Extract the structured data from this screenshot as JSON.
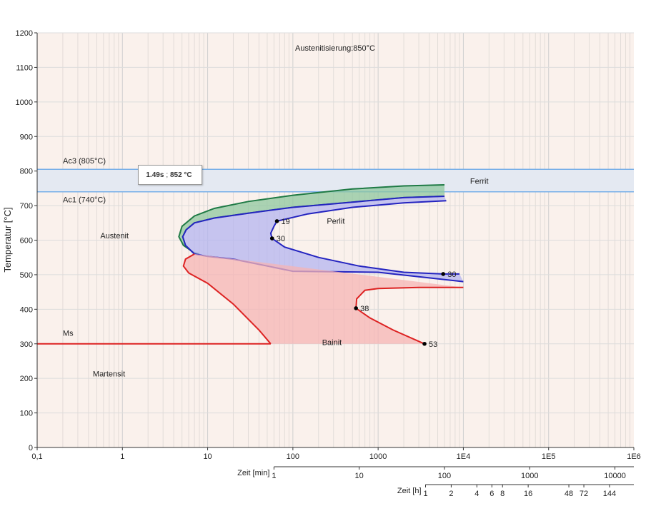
{
  "chart_data": {
    "type": "line",
    "title": "Austenitisierung:850°C",
    "ylabel": "Temperatur [°C]",
    "y_axis": {
      "min": 0,
      "max": 1200,
      "ticks": [
        0,
        100,
        200,
        300,
        400,
        500,
        600,
        700,
        800,
        900,
        1000,
        1100,
        1200
      ]
    },
    "x_axis": {
      "scale": "log",
      "min": 0.1,
      "max": 1000000,
      "unit": "s",
      "tick_labels": [
        {
          "value": 0.1,
          "label": "0,1"
        },
        {
          "value": 1,
          "label": "1"
        },
        {
          "value": 10,
          "label": "10"
        },
        {
          "value": 100,
          "label": "100"
        },
        {
          "value": 1000,
          "label": "1000"
        },
        {
          "value": 10000,
          "label": "1E4"
        },
        {
          "value": 100000,
          "label": "1E5"
        },
        {
          "value": 1000000,
          "label": "1E6"
        }
      ]
    },
    "minute_axis": {
      "label": "Zeit [min]",
      "ticks": [
        {
          "value": 1,
          "label": "1"
        },
        {
          "value": 10,
          "label": "10"
        },
        {
          "value": 100,
          "label": "100"
        },
        {
          "value": 1000,
          "label": "1000"
        },
        {
          "value": 10000,
          "label": "10000"
        }
      ]
    },
    "hour_axis": {
      "label": "Zeit [h]",
      "ticks": [
        {
          "value": 1,
          "label": "1"
        },
        {
          "value": 2,
          "label": "2"
        },
        {
          "value": 4,
          "label": "4"
        },
        {
          "value": 6,
          "label": "6"
        },
        {
          "value": 8,
          "label": "8"
        },
        {
          "value": 16,
          "label": "16"
        },
        {
          "value": 48,
          "label": "48"
        },
        {
          "value": 72,
          "label": "72"
        },
        {
          "value": 144,
          "label": "144"
        }
      ]
    },
    "reference_lines": [
      {
        "name": "Ac3 (805°C)",
        "value": 805
      },
      {
        "name": "Ac1 (740°C)",
        "value": 740
      }
    ],
    "region_labels": [
      {
        "text": "Ferrit",
        "t": 12000,
        "T": 763
      },
      {
        "text": "Perlit",
        "t": 250,
        "T": 648
      },
      {
        "text": "Austenit",
        "t": 0.55,
        "T": 605
      },
      {
        "text": "Bainit",
        "t": 220,
        "T": 296
      },
      {
        "text": "Ms",
        "t": 0.2,
        "T": 323
      },
      {
        "text": "Martensit",
        "t": 0.45,
        "T": 205
      }
    ],
    "series": [
      {
        "key": "ferrit",
        "color": "#1f7a45",
        "fill": "#8fc79f",
        "upper": [
          [
            6000,
            760
          ],
          [
            2000,
            757
          ],
          [
            500,
            748
          ],
          [
            100,
            730
          ],
          [
            30,
            712
          ],
          [
            12,
            692
          ],
          [
            7,
            670
          ],
          [
            5,
            640
          ],
          [
            4.6,
            610
          ],
          [
            5.2,
            585
          ],
          [
            7,
            563
          ],
          [
            8,
            560
          ]
        ],
        "lower": [
          [
            6000,
            727
          ],
          [
            2000,
            723
          ],
          [
            500,
            710
          ],
          [
            100,
            695
          ],
          [
            30,
            678
          ],
          [
            12,
            664
          ],
          [
            7,
            650
          ],
          [
            5.6,
            630
          ],
          [
            5.1,
            610
          ],
          [
            5.5,
            585
          ],
          [
            7,
            560
          ]
        ]
      },
      {
        "key": "perlit",
        "color": "#2424c0",
        "fill": "#b4b4f0",
        "upper": [
          [
            6000,
            727
          ],
          [
            2000,
            723
          ],
          [
            500,
            710
          ],
          [
            100,
            695
          ],
          [
            30,
            678
          ],
          [
            12,
            664
          ],
          [
            7,
            650
          ],
          [
            5.6,
            630
          ],
          [
            5.1,
            610
          ],
          [
            5.5,
            585
          ],
          [
            7,
            560
          ],
          [
            10,
            553
          ],
          [
            20,
            545
          ],
          [
            40,
            530
          ],
          [
            100,
            510
          ],
          [
            1000,
            507
          ],
          [
            10000,
            480
          ]
        ],
        "lower": [
          [
            6300,
            714
          ],
          [
            2000,
            708
          ],
          [
            500,
            695
          ],
          [
            150,
            676
          ],
          [
            65,
            655
          ],
          [
            60,
            640
          ],
          [
            55,
            620
          ],
          [
            57,
            605
          ],
          [
            80,
            580
          ],
          [
            200,
            550
          ],
          [
            600,
            525
          ],
          [
            2000,
            507
          ],
          [
            5800,
            502
          ],
          [
            9000,
            502
          ]
        ],
        "points": [
          {
            "t": 65,
            "T": 655,
            "label": "19"
          },
          {
            "t": 57,
            "T": 605,
            "label": "30"
          },
          {
            "t": 5800,
            "T": 502,
            "label": "30"
          }
        ]
      },
      {
        "key": "bainit",
        "color": "#dd2222",
        "fill": "#f5b4b4",
        "upper": [
          [
            7,
            560
          ],
          [
            5.5,
            545
          ],
          [
            5.2,
            525
          ],
          [
            6,
            505
          ],
          [
            10,
            475
          ],
          [
            20,
            415
          ],
          [
            40,
            340
          ],
          [
            55,
            300
          ]
        ],
        "lower": [
          [
            10000,
            463
          ],
          [
            3000,
            463
          ],
          [
            1000,
            460
          ],
          [
            700,
            455
          ],
          [
            560,
            430
          ],
          [
            550,
            403
          ],
          [
            800,
            375
          ],
          [
            1500,
            340
          ],
          [
            3500,
            300
          ]
        ],
        "ms_line": [
          [
            0.1,
            300
          ],
          [
            55,
            300
          ]
        ],
        "points": [
          {
            "t": 550,
            "T": 403,
            "label": "38"
          },
          {
            "t": 3500,
            "T": 300,
            "label": "53"
          }
        ]
      }
    ],
    "grid": true
  },
  "tooltip": {
    "time": "1.49s",
    "temp": "852 °C"
  }
}
